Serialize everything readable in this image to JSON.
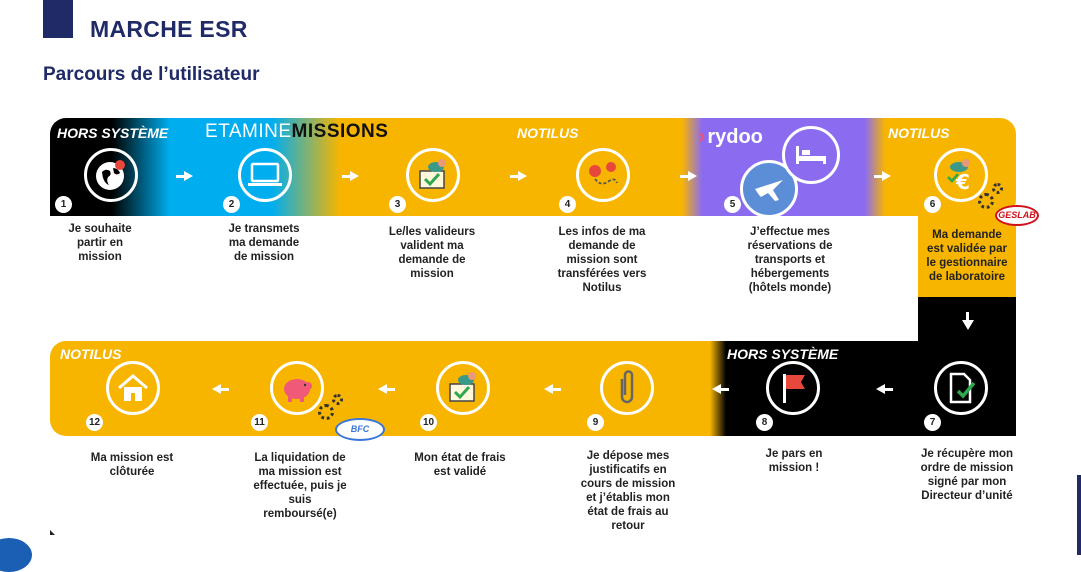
{
  "header": {
    "title": "MARCHE ESR",
    "subtitle": "Parcours de l’utilisateur"
  },
  "sections": {
    "hors_systeme_1": "HORS SYSTÈME",
    "etamine_a": "ETAMINE",
    "etamine_b": "MISSIONS",
    "notilus_1": "NOTILUS",
    "rydoo": "rydoo",
    "notilus_2": "NOTILUS",
    "hors_systeme_2": "HORS SYSTÈME",
    "notilus_3": "NOTILUS"
  },
  "badges": {
    "geslab": "GESLAB",
    "bfc": "BFC"
  },
  "steps": [
    {
      "num": "1",
      "icon": "globe-pin-icon",
      "text": [
        "Je souhaite",
        "partir en",
        "mission"
      ]
    },
    {
      "num": "2",
      "icon": "laptop-icon",
      "text": [
        "Je transmets",
        "ma demande",
        "de mission"
      ]
    },
    {
      "num": "3",
      "icon": "stamp-approve-icon",
      "text": [
        "Le/les valideurs",
        "valident ma",
        "demande de",
        "mission"
      ]
    },
    {
      "num": "4",
      "icon": "route-pins-icon",
      "text": [
        "Les infos de ma",
        "demande de",
        "mission sont",
        "transférées vers",
        "Notilus"
      ]
    },
    {
      "num": "5",
      "icon": "plane-hotel-icon",
      "text": [
        "J’effectue mes",
        "réservations de",
        "transports et",
        "hébergements",
        "(hôtels monde)"
      ]
    },
    {
      "num": "6",
      "icon": "stamp-euro-icon",
      "text": [
        "Ma demande",
        "est validée par",
        "le gestionnaire",
        "de laboratoire"
      ]
    },
    {
      "num": "7",
      "icon": "signed-document-icon",
      "text": [
        "Je récupère mon",
        "ordre de mission",
        "signé par mon",
        "Directeur d’unité"
      ]
    },
    {
      "num": "8",
      "icon": "flag-icon",
      "text": [
        "Je pars en",
        "mission !"
      ]
    },
    {
      "num": "9",
      "icon": "paperclip-icon",
      "text": [
        "Je dépose mes",
        "justificatifs en",
        "cours de mission",
        "et j’établis mon",
        "état de frais au",
        "retour"
      ]
    },
    {
      "num": "10",
      "icon": "stamp-approve-icon",
      "text": [
        "Mon état de frais",
        "est validé"
      ]
    },
    {
      "num": "11",
      "icon": "piggy-bank-icon",
      "text": [
        "La liquidation de",
        "ma mission est",
        "effectuée, puis je",
        "suis",
        "remboursé(e)"
      ]
    },
    {
      "num": "12",
      "icon": "home-icon",
      "text": [
        "Ma mission est",
        "clôturée"
      ]
    }
  ],
  "colors": {
    "navy": "#1f2a66",
    "yellow": "#f7b500",
    "cyan": "#00aeef",
    "purple": "#8b6cf0"
  }
}
